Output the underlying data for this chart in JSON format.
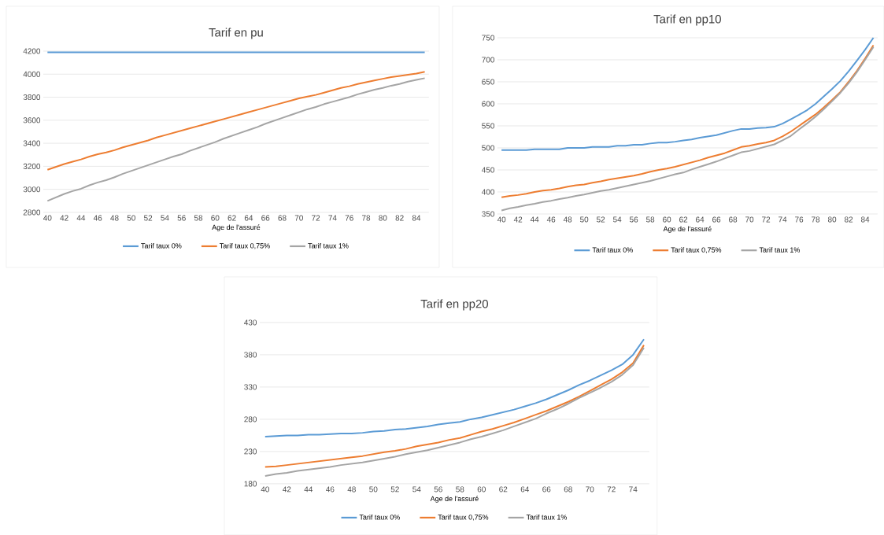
{
  "chart_data": [
    {
      "type": "line",
      "title": "Tarif en pu",
      "xlabel": "Age de l'assuré",
      "categories": [
        "40",
        null,
        "42",
        null,
        "44",
        null,
        "46",
        null,
        "48",
        null,
        "50",
        null,
        "52",
        null,
        "54",
        null,
        "56",
        null,
        "58",
        null,
        "60",
        null,
        "62",
        null,
        "64",
        null,
        "66",
        null,
        "68",
        null,
        "70",
        null,
        "72",
        null,
        "74",
        null,
        "76",
        null,
        "78",
        null,
        "80",
        null,
        "82",
        null,
        "84",
        null
      ],
      "series": [
        {
          "name": "Tarif taux 0%",
          "color": "#5b9bd5",
          "values": [
            4190,
            4190,
            4190,
            4190,
            4190,
            4190,
            4190,
            4190,
            4190,
            4190,
            4190,
            4190,
            4190,
            4190,
            4190,
            4190,
            4190,
            4190,
            4190,
            4190,
            4190,
            4190,
            4190,
            4190,
            4190,
            4190,
            4190,
            4190,
            4190,
            4190,
            4190,
            4190,
            4190,
            4190,
            4190,
            4190,
            4190,
            4190,
            4190,
            4190,
            4190,
            4190,
            4190,
            4190,
            4190,
            4190
          ]
        },
        {
          "name": "Tarif taux 0,75%",
          "color": "#ed7d31",
          "values": [
            3170,
            3195,
            3220,
            3240,
            3260,
            3285,
            3305,
            3320,
            3340,
            3365,
            3385,
            3405,
            3425,
            3450,
            3470,
            3490,
            3510,
            3530,
            3550,
            3570,
            3590,
            3610,
            3630,
            3650,
            3670,
            3690,
            3710,
            3730,
            3750,
            3770,
            3790,
            3805,
            3820,
            3840,
            3860,
            3880,
            3895,
            3915,
            3930,
            3945,
            3960,
            3975,
            3985,
            3995,
            4005,
            4020
          ]
        },
        {
          "name": "Tarif taux 1%",
          "color": "#a5a5a5",
          "values": [
            2900,
            2930,
            2960,
            2985,
            3005,
            3035,
            3060,
            3080,
            3105,
            3135,
            3160,
            3185,
            3210,
            3235,
            3260,
            3285,
            3305,
            3335,
            3360,
            3385,
            3410,
            3440,
            3465,
            3490,
            3515,
            3540,
            3570,
            3595,
            3620,
            3645,
            3670,
            3695,
            3715,
            3740,
            3760,
            3780,
            3800,
            3825,
            3845,
            3865,
            3880,
            3900,
            3915,
            3935,
            3950,
            3965
          ]
        }
      ],
      "ylim": [
        2800,
        4200
      ],
      "yticks": [
        2800,
        3000,
        3200,
        3400,
        3600,
        3800,
        4000,
        4200
      ],
      "grid": "y",
      "legend": "bottom"
    },
    {
      "type": "line",
      "title": "Tarif en pp10",
      "xlabel": "Age de l'assuré",
      "categories": [
        "40",
        null,
        "42",
        null,
        "44",
        null,
        "46",
        null,
        "48",
        null,
        "50",
        null,
        "52",
        null,
        "54",
        null,
        "56",
        null,
        "58",
        null,
        "60",
        null,
        "62",
        null,
        "64",
        null,
        "66",
        null,
        "68",
        null,
        "70",
        null,
        "72",
        null,
        "74",
        null,
        "76",
        null,
        "78",
        null,
        "80",
        null,
        "82",
        null,
        "84",
        null
      ],
      "series": [
        {
          "name": "Tarif taux 0%",
          "color": "#5b9bd5",
          "values": [
            495,
            495,
            495,
            495,
            497,
            497,
            497,
            497,
            500,
            500,
            500,
            502,
            502,
            502,
            505,
            505,
            507,
            507,
            510,
            512,
            512,
            514,
            517,
            519,
            523,
            526,
            529,
            534,
            539,
            543,
            543,
            545,
            546,
            548,
            555,
            565,
            575,
            586,
            600,
            617,
            634,
            652,
            674,
            698,
            723,
            750
          ]
        },
        {
          "name": "Tarif taux 0,75%",
          "color": "#ed7d31",
          "values": [
            388,
            391,
            393,
            396,
            400,
            403,
            405,
            408,
            412,
            415,
            417,
            421,
            424,
            428,
            431,
            434,
            437,
            441,
            446,
            450,
            453,
            457,
            462,
            467,
            472,
            478,
            483,
            488,
            495,
            502,
            505,
            509,
            512,
            517,
            526,
            537,
            550,
            563,
            576,
            592,
            609,
            627,
            650,
            675,
            703,
            733
          ]
        },
        {
          "name": "Tarif taux 1%",
          "color": "#a5a5a5",
          "values": [
            358,
            363,
            366,
            370,
            373,
            377,
            380,
            384,
            387,
            391,
            394,
            398,
            402,
            405,
            409,
            413,
            417,
            421,
            425,
            430,
            435,
            440,
            444,
            451,
            457,
            463,
            469,
            476,
            483,
            490,
            493,
            498,
            503,
            508,
            517,
            527,
            542,
            556,
            571,
            588,
            606,
            625,
            647,
            672,
            700,
            729
          ]
        }
      ],
      "ylim": [
        350,
        750
      ],
      "yticks": [
        350,
        400,
        450,
        500,
        550,
        600,
        650,
        700,
        750
      ],
      "grid": "y",
      "legend": "bottom"
    },
    {
      "type": "line",
      "title": "Tarif en pp20",
      "xlabel": "Age de l'assuré",
      "categories": [
        "40",
        null,
        "42",
        null,
        "44",
        null,
        "46",
        null,
        "48",
        null,
        "50",
        null,
        "52",
        null,
        "54",
        null,
        "56",
        null,
        "58",
        null,
        "60",
        null,
        "62",
        null,
        "64",
        null,
        "66",
        null,
        "68",
        null,
        "70",
        null,
        "72",
        null,
        "74",
        null
      ],
      "series": [
        {
          "name": "Tarif taux 0%",
          "color": "#5b9bd5",
          "values": [
            253,
            254,
            255,
            255,
            256,
            256,
            257,
            258,
            258,
            259,
            261,
            262,
            264,
            265,
            267,
            269,
            272,
            274,
            276,
            280,
            283,
            287,
            291,
            295,
            300,
            305,
            311,
            318,
            325,
            333,
            340,
            348,
            356,
            365,
            380,
            404
          ]
        },
        {
          "name": "Tarif taux 0,75%",
          "color": "#ed7d31",
          "values": [
            206,
            207,
            209,
            211,
            213,
            215,
            217,
            219,
            221,
            223,
            226,
            229,
            231,
            234,
            238,
            241,
            244,
            248,
            251,
            256,
            261,
            265,
            270,
            275,
            281,
            287,
            293,
            300,
            307,
            315,
            324,
            333,
            342,
            353,
            367,
            395
          ]
        },
        {
          "name": "Tarif taux 1%",
          "color": "#a5a5a5",
          "values": [
            192,
            195,
            197,
            200,
            202,
            204,
            206,
            209,
            211,
            213,
            216,
            219,
            222,
            226,
            229,
            232,
            236,
            240,
            244,
            249,
            253,
            258,
            263,
            269,
            275,
            281,
            289,
            296,
            304,
            313,
            321,
            329,
            338,
            349,
            364,
            391
          ]
        }
      ],
      "ylim": [
        180,
        430
      ],
      "yticks": [
        180,
        230,
        280,
        330,
        380,
        430
      ],
      "grid": "y",
      "legend": "bottom"
    }
  ]
}
